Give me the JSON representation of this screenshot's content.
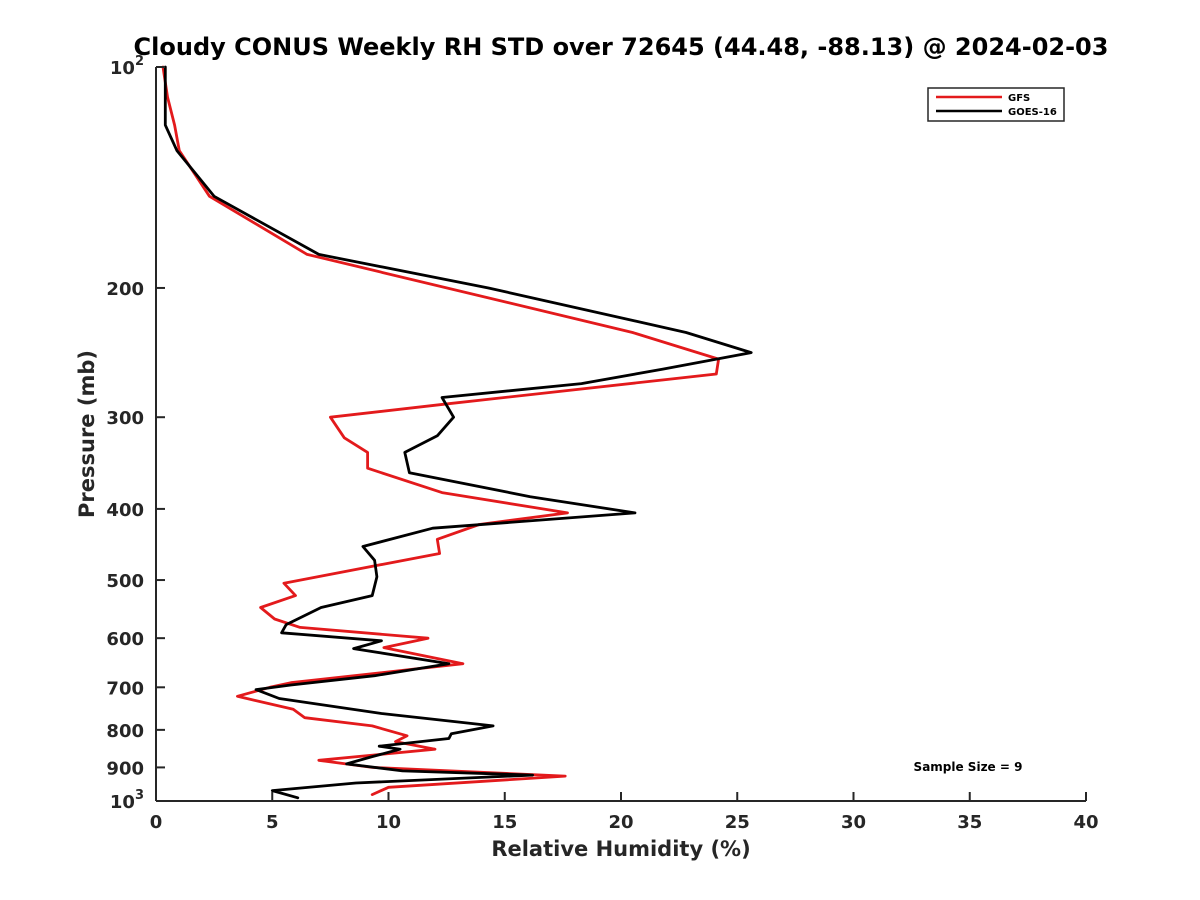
{
  "chart_data": {
    "type": "line",
    "title": "Cloudy CONUS Weekly RH STD over 72645 (44.48, -88.13) @ 2024-02-03",
    "xlabel": "Relative Humidity (%)",
    "ylabel": "Pressure (mb)",
    "xlim": [
      0,
      40
    ],
    "ylim": [
      100,
      1000
    ],
    "y_scale": "log",
    "y_reversed": true,
    "grid": false,
    "legend_position": "top-right",
    "x_ticks": [
      "0",
      "5",
      "10",
      "15",
      "20",
      "25",
      "30",
      "35",
      "40"
    ],
    "y_ticks": [
      {
        "value": 100,
        "base": "10",
        "exp": "2"
      },
      {
        "value": 200,
        "label": "200"
      },
      {
        "value": 300,
        "label": "300"
      },
      {
        "value": 400,
        "label": "400"
      },
      {
        "value": 500,
        "label": "500"
      },
      {
        "value": 600,
        "label": "600"
      },
      {
        "value": 700,
        "label": "700"
      },
      {
        "value": 800,
        "label": "800"
      },
      {
        "value": 900,
        "label": "900"
      },
      {
        "value": 1000,
        "base": "10",
        "exp": "3"
      }
    ],
    "annotation": "Sample Size = 9",
    "series": [
      {
        "name": "GFS",
        "color": "#e31a1c",
        "points": [
          [
            0.3,
            100
          ],
          [
            0.5,
            110
          ],
          [
            0.8,
            120
          ],
          [
            1.0,
            130
          ],
          [
            2.3,
            150
          ],
          [
            6.5,
            180
          ],
          [
            20.5,
            230
          ],
          [
            24.2,
            250
          ],
          [
            24.1,
            262
          ],
          [
            12.4,
            288
          ],
          [
            7.5,
            300
          ],
          [
            8.1,
            320
          ],
          [
            9.1,
            335
          ],
          [
            9.1,
            352
          ],
          [
            12.3,
            380
          ],
          [
            17.7,
            405
          ],
          [
            13.9,
            420
          ],
          [
            12.1,
            440
          ],
          [
            12.2,
            460
          ],
          [
            5.5,
            505
          ],
          [
            6.0,
            525
          ],
          [
            4.5,
            545
          ],
          [
            5.1,
            565
          ],
          [
            6.2,
            580
          ],
          [
            11.7,
            600
          ],
          [
            9.8,
            618
          ],
          [
            13.2,
            650
          ],
          [
            5.8,
            690
          ],
          [
            4.9,
            700
          ],
          [
            3.5,
            720
          ],
          [
            5.9,
            750
          ],
          [
            6.4,
            770
          ],
          [
            9.3,
            790
          ],
          [
            10.8,
            815
          ],
          [
            10.3,
            830
          ],
          [
            12.0,
            850
          ],
          [
            7.0,
            880
          ],
          [
            9.3,
            900
          ],
          [
            17.6,
            925
          ],
          [
            10.0,
            958
          ],
          [
            9.3,
            980
          ]
        ]
      },
      {
        "name": "GOES-16",
        "color": "#000000",
        "points": [
          [
            0.4,
            100
          ],
          [
            0.4,
            110
          ],
          [
            0.4,
            120
          ],
          [
            0.9,
            130
          ],
          [
            2.5,
            150
          ],
          [
            7.0,
            180
          ],
          [
            14.3,
            200
          ],
          [
            22.8,
            230
          ],
          [
            25.6,
            245
          ],
          [
            21.8,
            258
          ],
          [
            18.3,
            270
          ],
          [
            12.3,
            282
          ],
          [
            12.8,
            300
          ],
          [
            12.1,
            318
          ],
          [
            10.7,
            335
          ],
          [
            10.9,
            357
          ],
          [
            16.1,
            385
          ],
          [
            20.6,
            405
          ],
          [
            11.9,
            425
          ],
          [
            8.9,
            450
          ],
          [
            9.4,
            470
          ],
          [
            9.5,
            495
          ],
          [
            9.3,
            525
          ],
          [
            7.1,
            545
          ],
          [
            5.6,
            575
          ],
          [
            5.4,
            590
          ],
          [
            9.7,
            605
          ],
          [
            8.5,
            620
          ],
          [
            12.6,
            650
          ],
          [
            9.4,
            675
          ],
          [
            5.8,
            695
          ],
          [
            4.3,
            705
          ],
          [
            5.3,
            725
          ],
          [
            9.7,
            760
          ],
          [
            14.5,
            790
          ],
          [
            12.7,
            810
          ],
          [
            12.6,
            822
          ],
          [
            9.6,
            842
          ],
          [
            10.5,
            850
          ],
          [
            9.3,
            870
          ],
          [
            8.2,
            890
          ],
          [
            10.6,
            910
          ],
          [
            16.2,
            922
          ],
          [
            8.6,
            945
          ],
          [
            5.0,
            968
          ],
          [
            6.1,
            990
          ]
        ]
      }
    ]
  }
}
